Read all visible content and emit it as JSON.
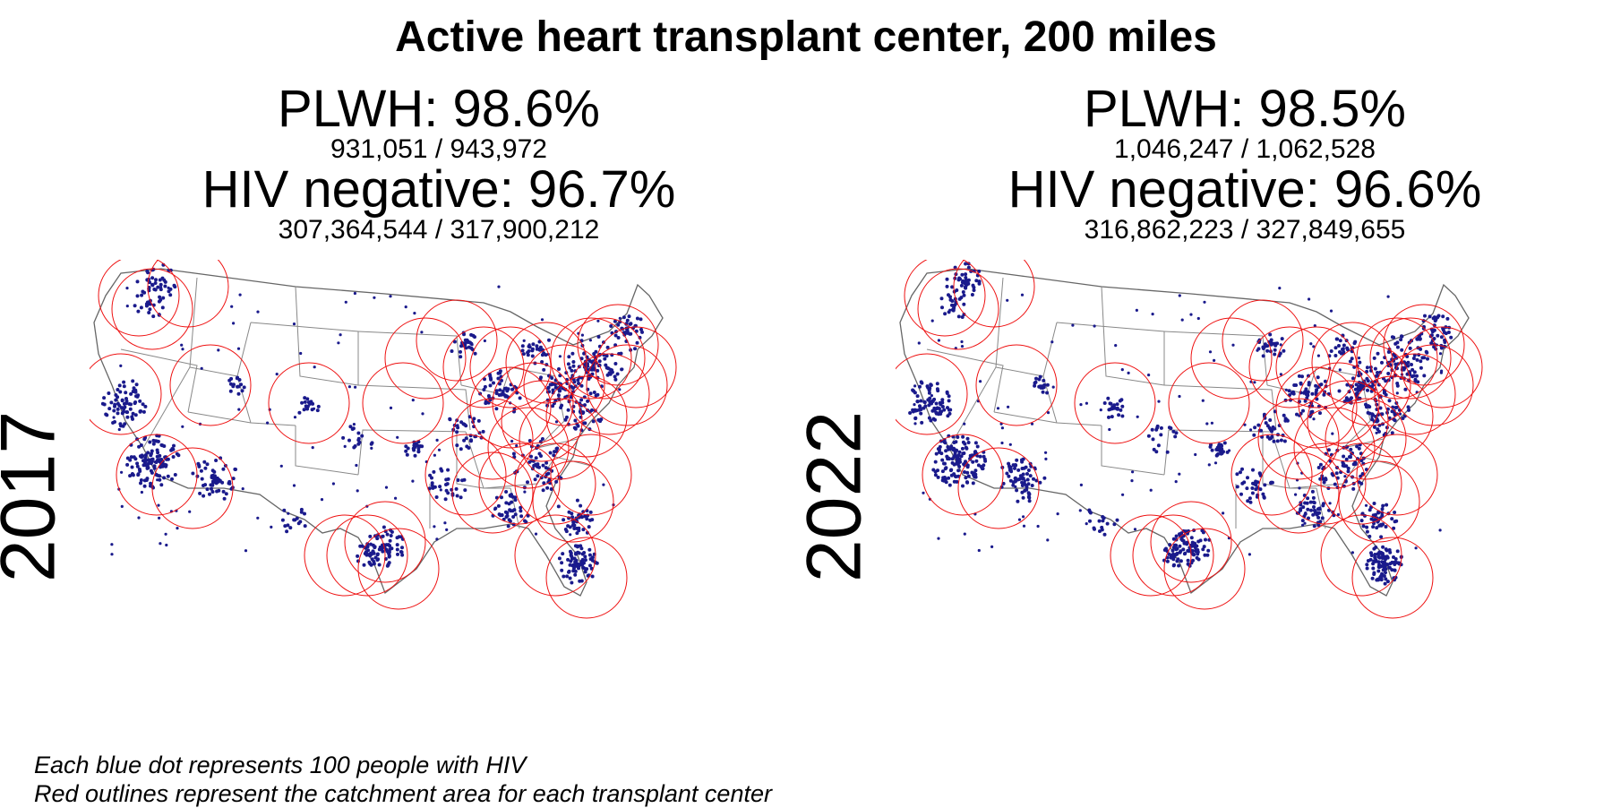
{
  "title": "Active heart transplant center, 200 miles",
  "colors": {
    "dot": "#1a1a8c",
    "catchment": "#ee1111",
    "state_outline": "#666666"
  },
  "panels": [
    {
      "year": "2017",
      "plwh_label": "PLWH: 98.6%",
      "plwh_counts": "931,051 / 943,972",
      "hivneg_label": "HIV negative: 96.7%",
      "hivneg_counts": "307,364,544 / 317,900,212"
    },
    {
      "year": "2022",
      "plwh_label": "PLWH: 98.5%",
      "plwh_counts": "1,046,247 / 1,062,528",
      "hivneg_label": "HIV negative: 96.6%",
      "hivneg_counts": "316,862,223 / 327,849,655"
    }
  ],
  "caption": {
    "line1": "Each blue dot represents 100 people with HIV",
    "line2": "Red outlines represent the catchment area for each transplant center"
  }
}
